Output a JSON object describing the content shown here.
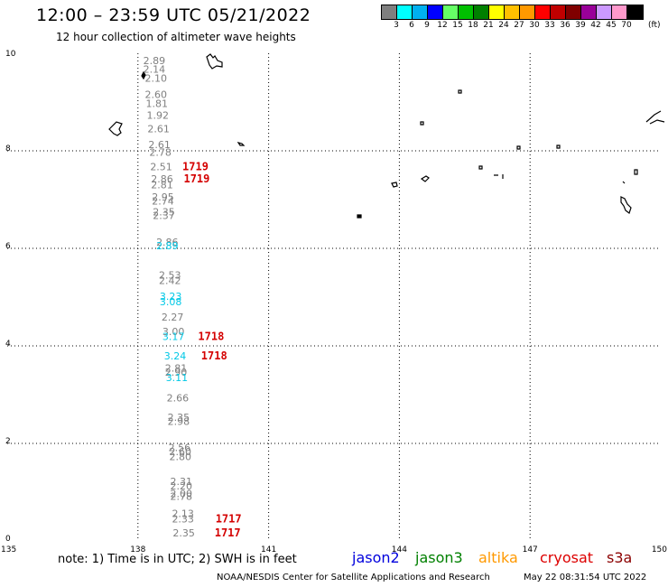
{
  "header": {
    "title": "12:00 – 23:59 UTC 05/21/2022",
    "subtitle": "12 hour collection of altimeter wave heights"
  },
  "legend": {
    "colors": [
      "#7f7f7f",
      "#00ffff",
      "#00b0f0",
      "#0000ff",
      "#66ff66",
      "#00c000",
      "#008000",
      "#ffff00",
      "#ffc000",
      "#ff9900",
      "#ff0000",
      "#c00000",
      "#800000",
      "#990099",
      "#cc99ff",
      "#ff99cc",
      "#000000"
    ],
    "labels": [
      "3",
      "6",
      "9",
      "12",
      "15",
      "18",
      "21",
      "24",
      "27",
      "30",
      "33",
      "36",
      "39",
      "42",
      "45",
      "70"
    ],
    "unit": "(ft)"
  },
  "chart_data": {
    "type": "scatter",
    "x_ticks": [
      "135",
      "138",
      "141",
      "144",
      "147",
      "150"
    ],
    "y_ticks": [
      "0",
      "2",
      "4",
      "6",
      "8",
      "10"
    ],
    "xlim": [
      135,
      150
    ],
    "ylim": [
      0,
      10
    ],
    "grid": true,
    "observations": [
      {
        "x": 138.12,
        "y": 9.78,
        "label": "2.89",
        "color": "#7f7f7f"
      },
      {
        "x": 138.12,
        "y": 9.6,
        "label": "2.14",
        "color": "#7f7f7f"
      },
      {
        "x": 138.16,
        "y": 9.42,
        "label": "2.10",
        "color": "#7f7f7f"
      },
      {
        "x": 138.16,
        "y": 9.08,
        "label": "2.60",
        "color": "#7f7f7f"
      },
      {
        "x": 138.18,
        "y": 8.9,
        "label": "1.81",
        "color": "#7f7f7f"
      },
      {
        "x": 138.2,
        "y": 8.66,
        "label": "1.92",
        "color": "#7f7f7f"
      },
      {
        "x": 138.22,
        "y": 8.38,
        "label": "2.61",
        "color": "#7f7f7f"
      },
      {
        "x": 138.24,
        "y": 8.06,
        "label": "2.61",
        "color": "#7f7f7f"
      },
      {
        "x": 138.26,
        "y": 7.9,
        "label": "2.78",
        "color": "#7f7f7f"
      },
      {
        "x": 138.28,
        "y": 7.6,
        "label": "2.51",
        "color": "#7f7f7f"
      },
      {
        "x": 138.3,
        "y": 7.35,
        "label": "2.86",
        "color": "#7f7f7f"
      },
      {
        "x": 138.3,
        "y": 7.23,
        "label": "2.81",
        "color": "#7f7f7f"
      },
      {
        "x": 138.32,
        "y": 6.98,
        "label": "2.95",
        "color": "#7f7f7f"
      },
      {
        "x": 138.32,
        "y": 6.9,
        "label": "2.74",
        "color": "#7f7f7f"
      },
      {
        "x": 138.34,
        "y": 6.68,
        "label": "2.35",
        "color": "#7f7f7f"
      },
      {
        "x": 138.34,
        "y": 6.6,
        "label": "2.37",
        "color": "#7f7f7f"
      },
      {
        "x": 138.42,
        "y": 6.06,
        "label": "2.86",
        "color": "#7f7f7f"
      },
      {
        "x": 138.42,
        "y": 5.98,
        "label": "2.89",
        "color": "#00c8e6"
      },
      {
        "x": 138.48,
        "y": 5.38,
        "label": "2.53",
        "color": "#7f7f7f"
      },
      {
        "x": 138.48,
        "y": 5.27,
        "label": "2.42",
        "color": "#7f7f7f"
      },
      {
        "x": 138.5,
        "y": 4.94,
        "label": "3.23",
        "color": "#00c8e6"
      },
      {
        "x": 138.5,
        "y": 4.83,
        "label": "3.08",
        "color": "#00c8e6"
      },
      {
        "x": 138.54,
        "y": 4.52,
        "label": "2.27",
        "color": "#7f7f7f"
      },
      {
        "x": 138.56,
        "y": 4.22,
        "label": "3.00",
        "color": "#7f7f7f"
      },
      {
        "x": 138.56,
        "y": 4.12,
        "label": "3.17",
        "color": "#00c8e6"
      },
      {
        "x": 138.6,
        "y": 3.72,
        "label": "3.24",
        "color": "#00c8e6"
      },
      {
        "x": 138.62,
        "y": 3.47,
        "label": "2.81",
        "color": "#7f7f7f"
      },
      {
        "x": 138.62,
        "y": 3.39,
        "label": "2.90",
        "color": "#7f7f7f"
      },
      {
        "x": 138.64,
        "y": 3.28,
        "label": "3.11",
        "color": "#00c8e6"
      },
      {
        "x": 138.66,
        "y": 2.86,
        "label": "2.66",
        "color": "#7f7f7f"
      },
      {
        "x": 138.68,
        "y": 2.46,
        "label": "2.35",
        "color": "#7f7f7f"
      },
      {
        "x": 138.68,
        "y": 2.38,
        "label": "2.98",
        "color": "#7f7f7f"
      },
      {
        "x": 138.7,
        "y": 1.84,
        "label": "2.56",
        "color": "#7f7f7f"
      },
      {
        "x": 138.72,
        "y": 1.76,
        "label": "2.60",
        "color": "#7f7f7f"
      },
      {
        "x": 138.72,
        "y": 1.66,
        "label": "2.80",
        "color": "#7f7f7f"
      },
      {
        "x": 138.74,
        "y": 1.15,
        "label": "2.31",
        "color": "#7f7f7f"
      },
      {
        "x": 138.74,
        "y": 1.06,
        "label": "2.20",
        "color": "#7f7f7f"
      },
      {
        "x": 138.74,
        "y": 0.9,
        "label": "2.00",
        "color": "#7f7f7f"
      },
      {
        "x": 138.74,
        "y": 0.84,
        "label": "2.78",
        "color": "#7f7f7f"
      },
      {
        "x": 138.78,
        "y": 0.49,
        "label": "2.13",
        "color": "#7f7f7f"
      },
      {
        "x": 138.78,
        "y": 0.38,
        "label": "2.33",
        "color": "#7f7f7f"
      },
      {
        "x": 138.8,
        "y": 0.09,
        "label": "2.35",
        "color": "#7f7f7f"
      }
    ],
    "time_labels": [
      {
        "x": 139.02,
        "y": 7.6,
        "label": "1719"
      },
      {
        "x": 139.05,
        "y": 7.35,
        "label": "1719"
      },
      {
        "x": 139.38,
        "y": 4.12,
        "label": "1718"
      },
      {
        "x": 139.45,
        "y": 3.72,
        "label": "1718"
      },
      {
        "x": 139.78,
        "y": 0.38,
        "label": "1717"
      },
      {
        "x": 139.76,
        "y": 0.09,
        "label": "1717"
      }
    ]
  },
  "footer": {
    "note": "note: 1) Time is in UTC; 2) SWH is in feet",
    "satellites": [
      {
        "name": "jason2",
        "color": "#0000dd"
      },
      {
        "name": "jason3",
        "color": "#008000"
      },
      {
        "name": "altika",
        "color": "#ff9900"
      },
      {
        "name": "cryosat",
        "color": "#dd0000"
      },
      {
        "name": "s3a",
        "color": "#8b0000"
      }
    ],
    "credit": "NOAA/NESDIS Center for Satellite Applications and Research",
    "timestamp": "May 22 08:31:54 UTC 2022"
  }
}
